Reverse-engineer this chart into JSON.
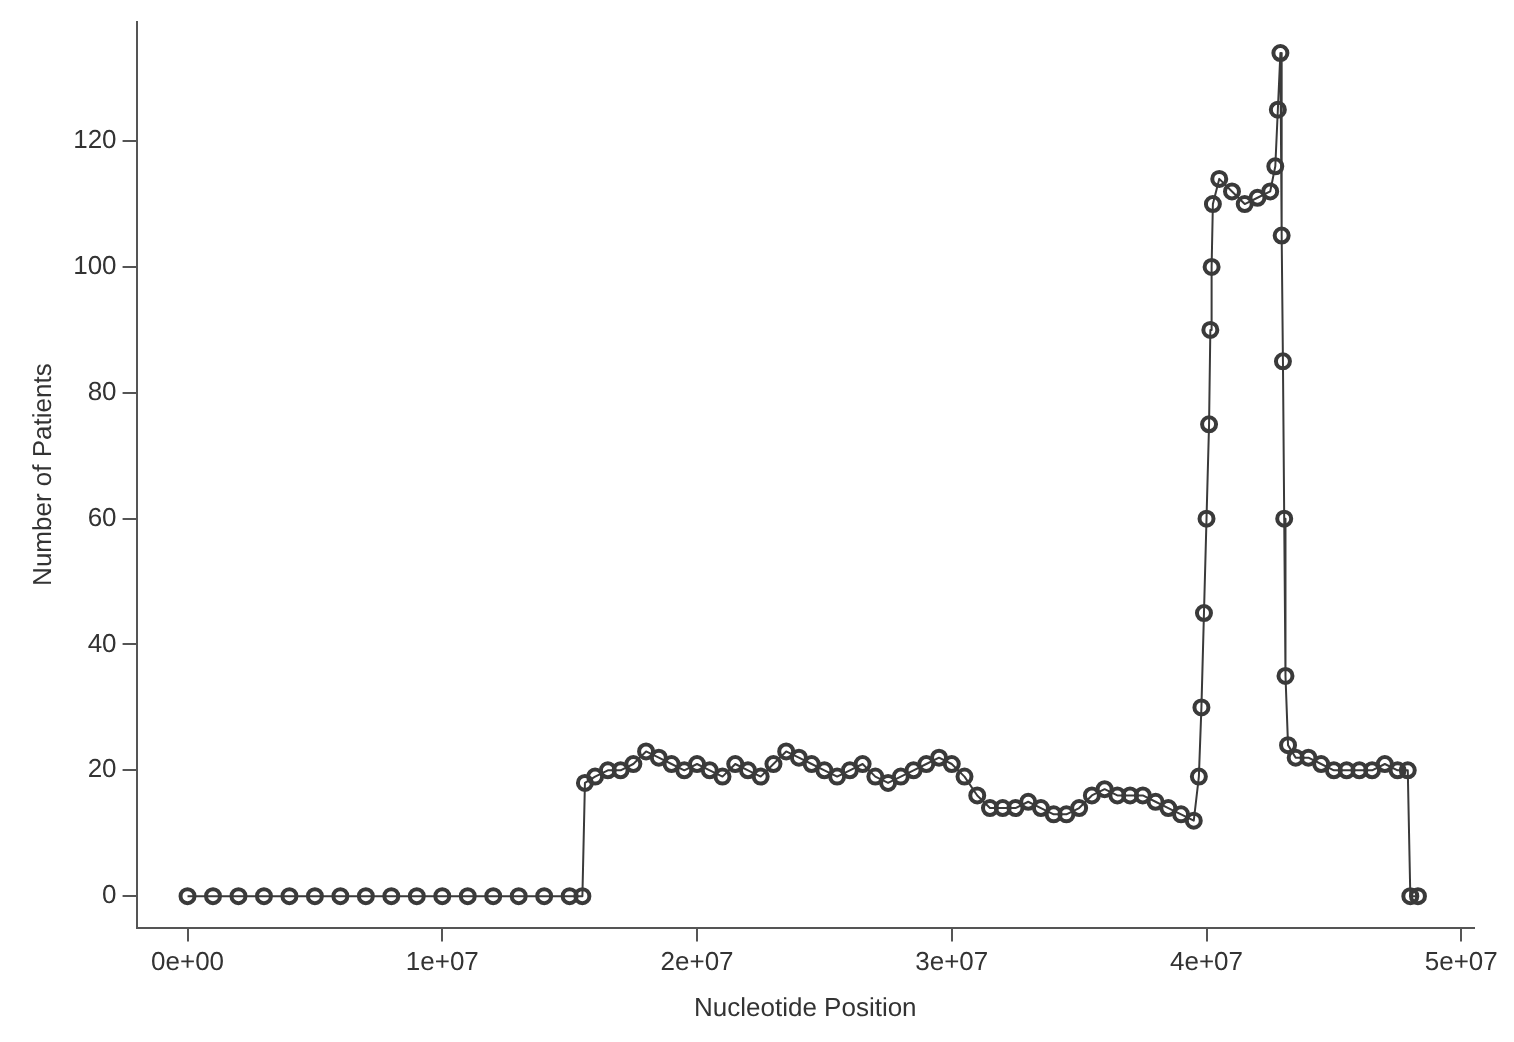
{
  "chart_data": {
    "type": "line",
    "xlabel": "Nucleotide Position",
    "ylabel": "Number of Patients",
    "xlim": [
      -2000000,
      50500000
    ],
    "ylim": [
      -5,
      139
    ],
    "xticks": [
      {
        "value": 0,
        "label": "0e+00"
      },
      {
        "value": 10000000,
        "label": "1e+07"
      },
      {
        "value": 20000000,
        "label": "2e+07"
      },
      {
        "value": 30000000,
        "label": "3e+07"
      },
      {
        "value": 40000000,
        "label": "4e+07"
      },
      {
        "value": 50000000,
        "label": "5e+07"
      }
    ],
    "yticks": [
      0,
      20,
      40,
      60,
      80,
      100,
      120
    ],
    "grid": false,
    "legend": false,
    "marker": "circle",
    "line_style": "solid",
    "series": [
      {
        "color": "#3a3a3a",
        "x": [
          0,
          1000000,
          2000000,
          3000000,
          4000000,
          5000000,
          6000000,
          7000000,
          8000000,
          9000000,
          10000000,
          11000000,
          12000000,
          13000000,
          14000000,
          15000000,
          15500000,
          15600000,
          16000000,
          16500000,
          17000000,
          17500000,
          18000000,
          18500000,
          19000000,
          19500000,
          20000000,
          20500000,
          21000000,
          21500000,
          22000000,
          22500000,
          23000000,
          23500000,
          24000000,
          24500000,
          25000000,
          25500000,
          26000000,
          26500000,
          27000000,
          27500000,
          28000000,
          28500000,
          29000000,
          29500000,
          30000000,
          30500000,
          31000000,
          31500000,
          32000000,
          32500000,
          33000000,
          33500000,
          34000000,
          34500000,
          35000000,
          35500000,
          36000000,
          36500000,
          37000000,
          37500000,
          38000000,
          38500000,
          39000000,
          39500000,
          39700000,
          39800000,
          39900000,
          40000000,
          40100000,
          40150000,
          40200000,
          40250000,
          40500000,
          41000000,
          41500000,
          42000000,
          42500000,
          42700000,
          42800000,
          42900000,
          42950000,
          43000000,
          43050000,
          43100000,
          43200000,
          43500000,
          44000000,
          44500000,
          45000000,
          45500000,
          46000000,
          46500000,
          47000000,
          47500000,
          47900000,
          48000000,
          48300000
        ],
        "values": [
          0,
          0,
          0,
          0,
          0,
          0,
          0,
          0,
          0,
          0,
          0,
          0,
          0,
          0,
          0,
          0,
          0,
          18,
          19,
          20,
          20,
          21,
          23,
          22,
          21,
          20,
          21,
          20,
          19,
          21,
          20,
          19,
          21,
          23,
          22,
          21,
          20,
          19,
          20,
          21,
          19,
          18,
          19,
          20,
          21,
          22,
          21,
          19,
          16,
          14,
          14,
          14,
          15,
          14,
          13,
          13,
          14,
          16,
          17,
          16,
          16,
          16,
          15,
          14,
          13,
          12,
          19,
          30,
          45,
          60,
          75,
          90,
          100,
          110,
          114,
          112,
          110,
          111,
          112,
          116,
          125,
          134,
          105,
          85,
          60,
          35,
          24,
          22,
          22,
          21,
          20,
          20,
          20,
          20,
          21,
          20,
          20,
          0,
          0
        ]
      }
    ]
  }
}
